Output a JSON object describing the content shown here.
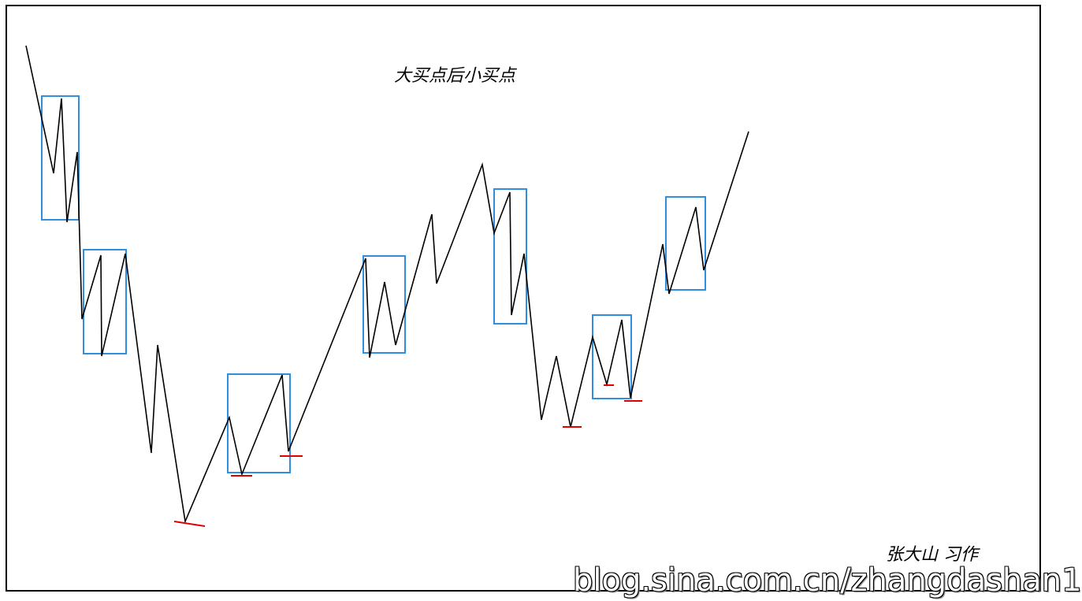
{
  "diagram": {
    "title": "大买点后小买点",
    "author": "张大山 习作",
    "watermark": "blog.sina.com.cn/zhangdashan1",
    "colors": {
      "price_line": "#000000",
      "box": "#2e8fe0",
      "marker": "#e00000",
      "frame": "#000000"
    }
  }
}
